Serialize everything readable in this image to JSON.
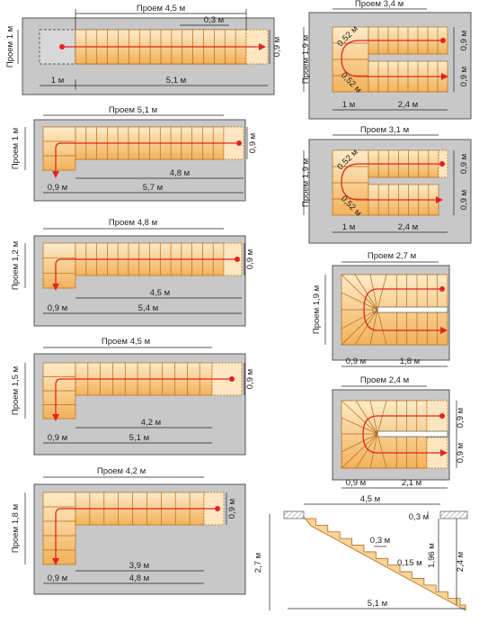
{
  "colors": {
    "room": "#c8c8c8",
    "step_light": "#fdebc8",
    "step_dark": "#f2b25a",
    "step_stroke": "#b56a1a",
    "path_line": "#e4231f"
  },
  "plans": [
    {
      "id": "p1",
      "opening_h": "Проем 4,5 м",
      "opening_v": "Проем 1 м",
      "gap": "0,3 м",
      "width_right": "0,9 м",
      "bottom_a": "1 м",
      "bottom_b": "5,1 м"
    },
    {
      "id": "p2",
      "opening_h": "Проем 5,1 м",
      "opening_v": "Проем 1 м",
      "width_right": "0,9 м",
      "inner": "4,8 м",
      "bottom_a": "0,9 м",
      "bottom_b": "5,7 м"
    },
    {
      "id": "p3",
      "opening_h": "Проем 4,8 м",
      "opening_v": "Проем 1,2 м",
      "width_right": "0,9 м",
      "inner": "4,5 м",
      "bottom_a": "0,9 м",
      "bottom_b": "5,4 м"
    },
    {
      "id": "p4",
      "opening_h": "Проем 4,5 м",
      "opening_v": "Проем 1,5 м",
      "width_right": "0,9 м",
      "inner": "4,2 м",
      "bottom_a": "0,9 м",
      "bottom_b": "5,1 м"
    },
    {
      "id": "p5",
      "opening_h": "Проем 4,2 м",
      "opening_v": "Проем 1,8 м",
      "width_right": "0,9 м",
      "inner": "3,9 м",
      "bottom_a": "0,9 м",
      "bottom_b": "4,8 м"
    },
    {
      "id": "p6",
      "opening_h": "Проем 3,4 м",
      "opening_v": "Проем 1,9 м",
      "radius_a": "0,52 м",
      "radius_b": "0,52 м",
      "right_a": "0,9 м",
      "right_b": "0,9 м",
      "bottom_a": "1 м",
      "bottom_b": "2,4 м"
    },
    {
      "id": "p7",
      "opening_h": "Проем 3,1 м",
      "opening_v": "Проем 1,9 м",
      "radius_a": "0,52 м",
      "radius_b": "0,52 м",
      "right_a": "0,9 м",
      "right_b": "0,9 м",
      "bottom_a": "1 м",
      "bottom_b": "2,4 м"
    },
    {
      "id": "p8",
      "opening_h": "Проем 2,7 м",
      "opening_v": "Проем 1,9 м",
      "bottom_a": "0,9 м",
      "bottom_b": "1,8 м"
    },
    {
      "id": "p9",
      "opening_h": "Проем 2,4 м",
      "right_a": "0,9 м",
      "right_b": "0,9 м",
      "bottom_a": "0,9 м",
      "bottom_b": "2,1 м"
    }
  ],
  "section": {
    "top_len": "4,5 м",
    "slab": "0,3 м",
    "total_h": "2,7 м",
    "inner_h": "1,96 м",
    "right_h": "2,4 м",
    "tread": "0,3 м",
    "riser": "0,15 м",
    "bottom_len": "5,1 м"
  }
}
